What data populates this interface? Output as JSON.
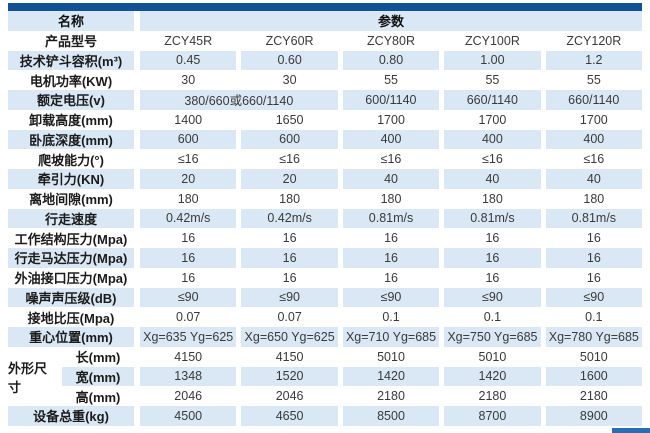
{
  "accent": {
    "top_bar_color": "#115296",
    "row_alt_color": "#d9e8f4",
    "corner_color": "#2b6cb3"
  },
  "table": {
    "header": {
      "name_label": "名称",
      "params_label": "参数"
    },
    "rows": [
      {
        "label": "产品型号",
        "values": [
          "ZCY45R",
          "ZCY60R",
          "ZCY80R",
          "ZCY100R",
          "ZCY120R"
        ]
      },
      {
        "label": "技术铲斗容积(m³)",
        "values": [
          "0.45",
          "0.60",
          "0.80",
          "1.00",
          "1.2"
        ]
      },
      {
        "label": "电机功率(KW)",
        "values": [
          "30",
          "30",
          "55",
          "55",
          "55"
        ]
      },
      {
        "label": "额定电压(v)",
        "values": [
          "380/660或660/1140",
          "600/1140",
          "660/1140",
          "660/1140"
        ],
        "first_cell_spans_two_columns": true
      },
      {
        "label": "卸载高度(mm)",
        "values": [
          "1400",
          "1650",
          "1700",
          "1700",
          "1700"
        ]
      },
      {
        "label": "卧底深度(mm)",
        "values": [
          "600",
          "600",
          "400",
          "400",
          "400"
        ]
      },
      {
        "label": "爬坡能力(°)",
        "values": [
          "≤16",
          "≤16",
          "≤16",
          "≤16",
          "≤16"
        ]
      },
      {
        "label": "牵引力(KN)",
        "values": [
          "20",
          "20",
          "40",
          "40",
          "40"
        ]
      },
      {
        "label": "离地间隙(mm)",
        "values": [
          "180",
          "180",
          "180",
          "180",
          "180"
        ]
      },
      {
        "label": "行走速度",
        "values": [
          "0.42m/s",
          "0.42m/s",
          "0.81m/s",
          "0.81m/s",
          "0.81m/s"
        ]
      },
      {
        "label": "工作结构压力(Mpa)",
        "values": [
          "16",
          "16",
          "16",
          "16",
          "16"
        ]
      },
      {
        "label": "行走马达压力(Mpa)",
        "values": [
          "16",
          "16",
          "16",
          "16",
          "16"
        ]
      },
      {
        "label": "外油接口压力(Mpa)",
        "values": [
          "16",
          "16",
          "16",
          "16",
          "16"
        ]
      },
      {
        "label": "噪声声压级(dB)",
        "values": [
          "≤90",
          "≤90",
          "≤90",
          "≤90",
          "≤90"
        ]
      },
      {
        "label": "接地比压(Mpa)",
        "values": [
          "0.07",
          "0.07",
          "0.1",
          "0.1",
          "0.1"
        ]
      },
      {
        "label": "重心位置(mm)",
        "values": [
          "Xg=635 Yg=625",
          "Xg=650 Yg=625",
          "Xg=710 Yg=685",
          "Xg=750 Yg=685",
          "Xg=780 Yg=685"
        ]
      }
    ],
    "dims": {
      "group_label": "外形尺寸",
      "rows": [
        {
          "label": "长(mm)",
          "values": [
            "4150",
            "4150",
            "5010",
            "5010",
            "5010"
          ]
        },
        {
          "label": "宽(mm)",
          "values": [
            "1348",
            "1520",
            "1420",
            "1420",
            "1600"
          ]
        },
        {
          "label": "高(mm)",
          "values": [
            "2046",
            "2046",
            "2180",
            "2180",
            "2180"
          ]
        }
      ]
    },
    "total_row": {
      "label": "设备总重(kg)",
      "values": [
        "4500",
        "4650",
        "8500",
        "8700",
        "8900"
      ]
    }
  }
}
